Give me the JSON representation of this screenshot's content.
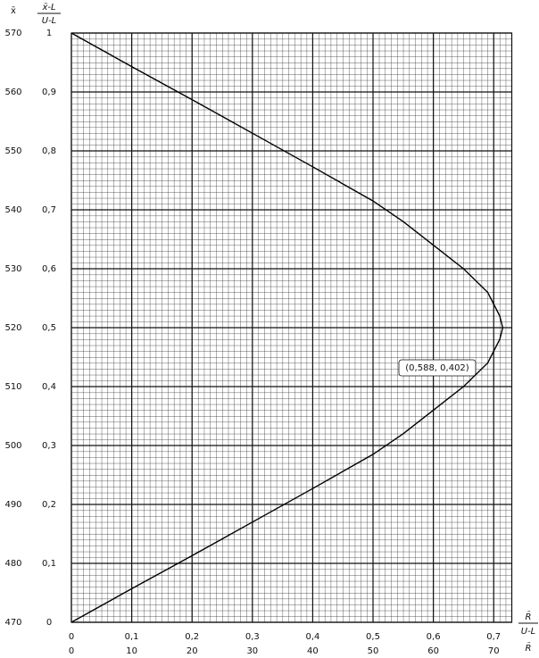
{
  "chart_data": {
    "type": "line",
    "y2_label": "x̄",
    "y_label": {
      "numerator": "x̄-L",
      "denominator": "U-L"
    },
    "x_label": {
      "numerator": "R̄",
      "denominator": "U-L"
    },
    "x2_label": "R̄",
    "annotation": "(0,588, 0,402)",
    "series": [
      {
        "color": "#000000",
        "x": [
          0,
          0.1,
          0.2,
          0.3,
          0.4,
          0.5,
          0.55,
          0.6,
          0.65,
          0.69,
          0.71,
          0.715,
          0.71,
          0.69,
          0.65,
          0.6,
          0.55,
          0.5,
          0.4,
          0.3,
          0.2,
          0.1,
          0
        ],
        "values": [
          1,
          0.943,
          0.887,
          0.83,
          0.773,
          0.715,
          0.68,
          0.64,
          0.6,
          0.56,
          0.52,
          0.5,
          0.48,
          0.44,
          0.4,
          0.36,
          0.32,
          0.285,
          0.227,
          0.17,
          0.113,
          0.057,
          0
        ]
      }
    ],
    "xlim": [
      0,
      0.73
    ],
    "xticks": [
      0,
      {
        "value": 0.1,
        "label": "0,1"
      },
      {
        "value": 0.2,
        "label": "0,2"
      },
      {
        "value": 0.3,
        "label": "0,3"
      },
      {
        "value": 0.4,
        "label": "0,4"
      },
      {
        "value": 0.5,
        "label": "0,5"
      },
      {
        "value": 0.6,
        "label": "0,6"
      },
      {
        "value": 0.7,
        "label": "0,7"
      }
    ],
    "x2lim": [
      0,
      73
    ],
    "x2ticks": [
      0,
      10,
      20,
      30,
      40,
      50,
      60,
      70
    ],
    "ylim": [
      0,
      1
    ],
    "yticks": [
      0,
      {
        "value": 0.1,
        "label": "0,1"
      },
      {
        "value": 0.2,
        "label": "0,2"
      },
      {
        "value": 0.3,
        "label": "0,3"
      },
      {
        "value": 0.4,
        "label": "0,4"
      },
      {
        "value": 0.5,
        "label": "0,5"
      },
      {
        "value": 0.6,
        "label": "0,6"
      },
      {
        "value": 0.7,
        "label": "0,7"
      },
      {
        "value": 0.8,
        "label": "0,8"
      },
      {
        "value": 0.9,
        "label": "0,9"
      },
      1
    ],
    "y2lim": [
      470,
      570
    ],
    "y2ticks": [
      470,
      480,
      490,
      500,
      510,
      520,
      530,
      540,
      550,
      560,
      570
    ],
    "grid": true
  }
}
